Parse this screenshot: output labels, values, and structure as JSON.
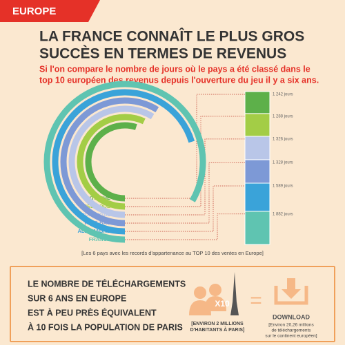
{
  "tag": "EUROPE",
  "title": [
    "LA FRANCE CONNAÎT LE PLUS GROS",
    "SUCCÈS EN TERMES DE REVENUS"
  ],
  "subtitle": [
    "Si l'on compare le nombre de jours où le pays a été classé dans le",
    "top 10 européen des revenus depuis l'ouverture du jeu il y a six ans."
  ],
  "chart_data": {
    "type": "radial_bar",
    "categories": [
      "AUTRICHE",
      "BELGIQUE",
      "PORTUGAL",
      "PAYS-BAS",
      "ALLEMAGNE",
      "FRANCE"
    ],
    "values": [
      1242,
      1288,
      1326,
      1328,
      1589,
      1882
    ],
    "value_labels": [
      "1 242 jours",
      "1 288 jours",
      "1 326 jours",
      "1 328 jours",
      "1 589 jours",
      "1 882 jours"
    ],
    "colors": [
      "#5db04a",
      "#a3cd46",
      "#b9c6e8",
      "#7d99d6",
      "#3aa3d9",
      "#5fc4b1"
    ],
    "caption": "[Les 6 pays avec les records d'appartenance au TOP 10 des ventes en Europe]"
  },
  "footer": {
    "statement": [
      "LE NOMBRE DE TÉLÉCHARGEMENTS",
      "SUR 6 ANS EN EUROPE",
      "EST À PEU PRÈS ÉQUIVALENT",
      "À 10 FOIS LA POPULATION DE PARIS"
    ],
    "multiplier": "X10",
    "paris_note": [
      "[ENVIRON 2 MILLIONS",
      "D'HABITANTS À PARIS]"
    ],
    "equals": "=",
    "download": "DOWNLOAD",
    "download_note": [
      "[Environ 20,26 millions",
      "de téléchargements",
      "sur le continent européen]"
    ]
  }
}
